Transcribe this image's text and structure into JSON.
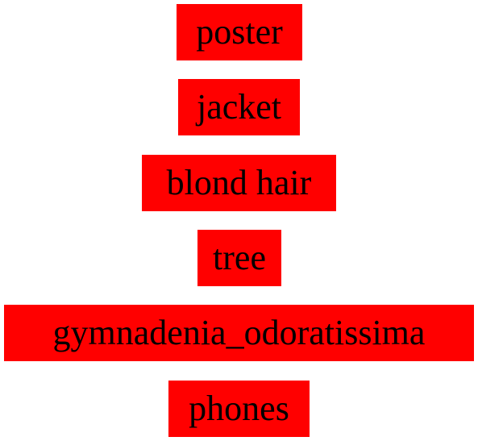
{
  "labels": [
    "poster",
    "jacket",
    "blond hair",
    "tree",
    "gymnadenia_odoratissima",
    "phones"
  ],
  "colors": {
    "box_background": "#ff0000",
    "text": "#000000",
    "page_background": "#ffffff"
  }
}
